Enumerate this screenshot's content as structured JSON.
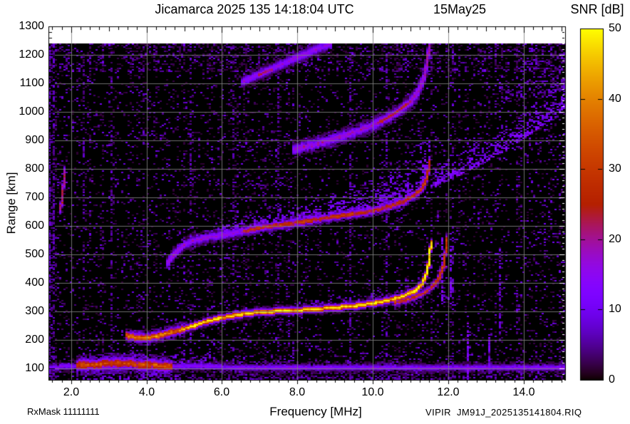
{
  "chart_data": {
    "type": "heatmap",
    "title": "Jicamarca 2025 135 14:18:04 UTC",
    "date_label": "15May25",
    "xlabel": "Frequency [MHz]",
    "ylabel": "Range [km]",
    "colorbar_label": "SNR [dB]",
    "xlim": [
      1.4,
      15.1
    ],
    "ylim": [
      60,
      1300
    ],
    "snr_lim": [
      0,
      50
    ],
    "x_ticks": [
      2.0,
      4.0,
      6.0,
      8.0,
      10.0,
      12.0,
      14.0
    ],
    "y_ticks": [
      100,
      200,
      300,
      400,
      500,
      600,
      700,
      800,
      900,
      1000,
      1100,
      1200,
      1300
    ],
    "colorbar_ticks": [
      0,
      10,
      20,
      30,
      40,
      50
    ],
    "grid": true,
    "max_data_range_km": 1240,
    "palette": "gnuplot-black-violet-red-yellow",
    "palette_stops": {
      "0": "#000000",
      "10": "#7202F2",
      "20": "#A11096",
      "30": "#C63700",
      "40": "#E48300",
      "50": "#FFFF00"
    },
    "annotations": {
      "rx_mask": "RxMask 11111111",
      "file_name": "VIPIR  JM91J_2025135141804.RIQ"
    },
    "echo_traces": [
      {
        "name": "E-layer-strong",
        "snr": 30,
        "snr_jitter": 12,
        "width_km": 22,
        "points": [
          [
            2.15,
            110
          ],
          [
            2.5,
            113
          ],
          [
            3.0,
            116
          ],
          [
            3.5,
            117
          ],
          [
            3.9,
            113
          ],
          [
            4.3,
            110
          ],
          [
            4.7,
            107
          ]
        ]
      },
      {
        "name": "E-layer-weak-left",
        "snr": 13,
        "snr_jitter": 5,
        "width_km": 12,
        "points": [
          [
            1.45,
            104
          ],
          [
            2.15,
            107
          ]
        ]
      },
      {
        "name": "E-layer-weak-right",
        "snr": 13,
        "snr_jitter": 6,
        "width_km": 12,
        "points": [
          [
            4.7,
            106
          ],
          [
            6.0,
            105
          ],
          [
            7.5,
            104
          ],
          [
            9.0,
            103
          ],
          [
            10.5,
            102
          ],
          [
            12.0,
            103
          ],
          [
            13.5,
            103
          ],
          [
            15.1,
            103
          ]
        ]
      },
      {
        "name": "F-trace-1st-hop-start",
        "snr": 36,
        "snr_jitter": 10,
        "width_km": 16,
        "points": [
          [
            3.45,
            216
          ],
          [
            3.7,
            209
          ],
          [
            3.95,
            207
          ],
          [
            4.2,
            211
          ],
          [
            4.45,
            220
          ],
          [
            4.7,
            228
          ],
          [
            5.0,
            239
          ]
        ]
      },
      {
        "name": "F-trace-1st-hop-O-mode",
        "snr": 48,
        "snr_jitter": 5,
        "width_km": 12,
        "points": [
          [
            5.0,
            239
          ],
          [
            5.5,
            261
          ],
          [
            6.0,
            278
          ],
          [
            6.5,
            290
          ],
          [
            7.0,
            297
          ],
          [
            7.5,
            301
          ],
          [
            8.0,
            304
          ],
          [
            8.5,
            308
          ],
          [
            9.0,
            313
          ],
          [
            9.5,
            319
          ],
          [
            10.0,
            328
          ],
          [
            10.4,
            338
          ],
          [
            10.8,
            352
          ],
          [
            11.1,
            370
          ],
          [
            11.3,
            394
          ],
          [
            11.42,
            428
          ],
          [
            11.5,
            475
          ],
          [
            11.55,
            545
          ]
        ]
      },
      {
        "name": "F-trace-1st-hop-X-mode",
        "snr": 28,
        "snr_jitter": 8,
        "width_km": 11,
        "points": [
          [
            10.6,
            330
          ],
          [
            11.0,
            344
          ],
          [
            11.3,
            360
          ],
          [
            11.55,
            382
          ],
          [
            11.75,
            414
          ],
          [
            11.88,
            458
          ],
          [
            11.95,
            520
          ],
          [
            11.98,
            560
          ]
        ]
      },
      {
        "name": "F-trace-2nd-hop-onset",
        "snr": 16,
        "snr_jitter": 6,
        "width_km": 16,
        "points": [
          [
            4.55,
            470
          ],
          [
            4.75,
            505
          ],
          [
            4.95,
            530
          ],
          [
            5.2,
            547
          ],
          [
            5.6,
            559
          ],
          [
            6.0,
            567
          ],
          [
            6.6,
            582
          ]
        ]
      },
      {
        "name": "F-trace-2nd-hop-edge",
        "snr": 27,
        "snr_jitter": 8,
        "width_km": 14,
        "points": [
          [
            6.6,
            582
          ],
          [
            7.0,
            593
          ],
          [
            7.5,
            603
          ],
          [
            8.0,
            612
          ],
          [
            8.5,
            622
          ],
          [
            9.0,
            632
          ],
          [
            9.5,
            642
          ],
          [
            10.0,
            653
          ],
          [
            10.4,
            666
          ],
          [
            10.8,
            684
          ],
          [
            11.1,
            706
          ],
          [
            11.3,
            730
          ],
          [
            11.45,
            772
          ],
          [
            11.52,
            828
          ]
        ]
      },
      {
        "name": "F-trace-3rd-hop",
        "snr": 17,
        "snr_jitter": 7,
        "width_km": 20,
        "points": [
          [
            7.9,
            868
          ],
          [
            8.4,
            884
          ],
          [
            8.9,
            902
          ],
          [
            9.4,
            923
          ],
          [
            9.9,
            947
          ],
          [
            10.3,
            972
          ],
          [
            10.7,
            1002
          ],
          [
            11.0,
            1034
          ],
          [
            11.2,
            1068
          ],
          [
            11.35,
            1115
          ],
          [
            11.45,
            1175
          ],
          [
            11.5,
            1235
          ]
        ]
      },
      {
        "name": "F-trace-3rd-hop-bright",
        "snr": 24,
        "snr_jitter": 6,
        "width_km": 12,
        "points": [
          [
            10.2,
            966
          ],
          [
            10.6,
            996
          ],
          [
            10.95,
            1030
          ]
        ]
      },
      {
        "name": "F-trace-4th-hop",
        "snr": 15,
        "snr_jitter": 5,
        "width_km": 18,
        "points": [
          [
            6.55,
            1105
          ],
          [
            7.0,
            1132
          ],
          [
            7.5,
            1162
          ],
          [
            8.0,
            1192
          ],
          [
            8.5,
            1218
          ],
          [
            8.9,
            1240
          ]
        ]
      },
      {
        "name": "F-trace-4th-hop-bright",
        "snr": 21,
        "snr_jitter": 5,
        "width_km": 12,
        "points": [
          [
            6.95,
            1128
          ],
          [
            7.35,
            1152
          ]
        ]
      },
      {
        "name": "low-freq-oblique-streak",
        "snr": 20,
        "snr_jitter": 5,
        "width_km": 12,
        "points": [
          [
            1.72,
            655
          ],
          [
            1.78,
            720
          ],
          [
            1.84,
            800
          ]
        ]
      }
    ],
    "diffuse_regions": [
      {
        "name": "E-region-scatter",
        "snr": 11,
        "density": 0.5,
        "extent_km": [
          30,
          65
        ],
        "edge": [
          [
            2.4,
            118
          ],
          [
            3.2,
            124
          ],
          [
            4.2,
            120
          ],
          [
            5.0,
            114
          ],
          [
            5.7,
            110
          ]
        ]
      },
      {
        "name": "E-region-scatter-weak",
        "snr": 8,
        "density": 0.4,
        "extent_km": [
          25,
          35
        ],
        "edge": [
          [
            5.7,
            108
          ],
          [
            8.0,
            105
          ],
          [
            10.5,
            103
          ]
        ]
      },
      {
        "name": "below-E-scatter",
        "snr": 11,
        "density": 0.45,
        "extent_km": [
          40,
          45
        ],
        "edge": [
          [
            2.1,
            62
          ],
          [
            4.8,
            62
          ]
        ]
      },
      {
        "name": "below-E-scatter-weak",
        "snr": 6.5,
        "density": 0.3,
        "extent_km": [
          35,
          35
        ],
        "edge": [
          [
            4.8,
            62
          ],
          [
            12.5,
            62
          ]
        ]
      },
      {
        "name": "above-F-trace-fuzz",
        "snr": 9.5,
        "density": 0.4,
        "extent_km": [
          20,
          70
        ],
        "edge": [
          [
            5.5,
            265
          ],
          [
            6.5,
            292
          ],
          [
            7.5,
            303
          ],
          [
            8.5,
            310
          ],
          [
            9.5,
            321
          ],
          [
            10.5,
            341
          ],
          [
            11.0,
            362
          ],
          [
            11.3,
            396
          ],
          [
            11.45,
            440
          ]
        ]
      },
      {
        "name": "spread-F-2nd-hop",
        "snr": 13.5,
        "density": 0.65,
        "extent_km": [
          35,
          150
        ],
        "edge": [
          [
            5.3,
            552
          ],
          [
            6.0,
            570
          ],
          [
            7.0,
            596
          ],
          [
            8.0,
            615
          ],
          [
            9.0,
            635
          ],
          [
            10.0,
            656
          ],
          [
            10.8,
            688
          ],
          [
            11.2,
            722
          ],
          [
            11.45,
            775
          ],
          [
            11.55,
            830
          ]
        ]
      },
      {
        "name": "oblique-spread-wedge",
        "snr": 12.5,
        "density": 0.6,
        "extent_km": [
          100,
          150
        ],
        "edge": [
          [
            11.55,
            738
          ],
          [
            12.0,
            762
          ],
          [
            12.5,
            792
          ],
          [
            13.0,
            826
          ],
          [
            13.5,
            864
          ],
          [
            14.0,
            906
          ],
          [
            14.5,
            950
          ],
          [
            15.1,
            1004
          ]
        ]
      },
      {
        "name": "top-right-diffuse",
        "snr": 7.5,
        "density": 0.35,
        "extent_km": [
          150,
          170
        ],
        "edge": [
          [
            13.4,
            1040
          ],
          [
            14.2,
            1058
          ],
          [
            15.1,
            1075
          ]
        ]
      }
    ],
    "rfi_stripes": [
      {
        "freq_mhz": 1.45,
        "snr": 9,
        "density": 0.7
      },
      {
        "freq_mhz": 1.52,
        "snr": 7,
        "density": 0.55
      },
      {
        "freq_mhz": 2.35,
        "snr": 6.5,
        "density": 0.3
      },
      {
        "freq_mhz": 3.05,
        "snr": 6.5,
        "density": 0.3
      },
      {
        "freq_mhz": 5.15,
        "snr": 7,
        "density": 0.35
      },
      {
        "freq_mhz": 6.3,
        "snr": 6.5,
        "density": 0.3
      },
      {
        "freq_mhz": 7.5,
        "snr": 6.5,
        "density": 0.3
      },
      {
        "freq_mhz": 9.4,
        "snr": 7,
        "density": 0.35
      },
      {
        "freq_mhz": 10.35,
        "snr": 7,
        "density": 0.3
      },
      {
        "freq_mhz": 11.85,
        "snr": 13,
        "density": 0.7,
        "range_km": [
          330,
          560
        ]
      },
      {
        "freq_mhz": 12.07,
        "snr": 12,
        "density": 0.6,
        "range_km": [
          330,
          555
        ]
      },
      {
        "freq_mhz": 12.5,
        "snr": 14,
        "density": 0.75,
        "range_km": [
          60,
          260
        ]
      },
      {
        "freq_mhz": 13.1,
        "snr": 13,
        "density": 0.7,
        "range_km": [
          60,
          250
        ]
      },
      {
        "freq_mhz": 13.35,
        "snr": 9,
        "density": 0.5,
        "range_km": [
          230,
          530
        ]
      }
    ],
    "noise": {
      "base_density": 0.085,
      "snr_max": 9,
      "dense_bands": [
        {
          "range_km": [
            1140,
            1240
          ],
          "mult": 2.4
        },
        {
          "range_km": [
            60,
            100
          ],
          "mult": 2.0
        },
        {
          "range_km": [
            100,
            145
          ],
          "mult": 1.5
        }
      ]
    }
  }
}
